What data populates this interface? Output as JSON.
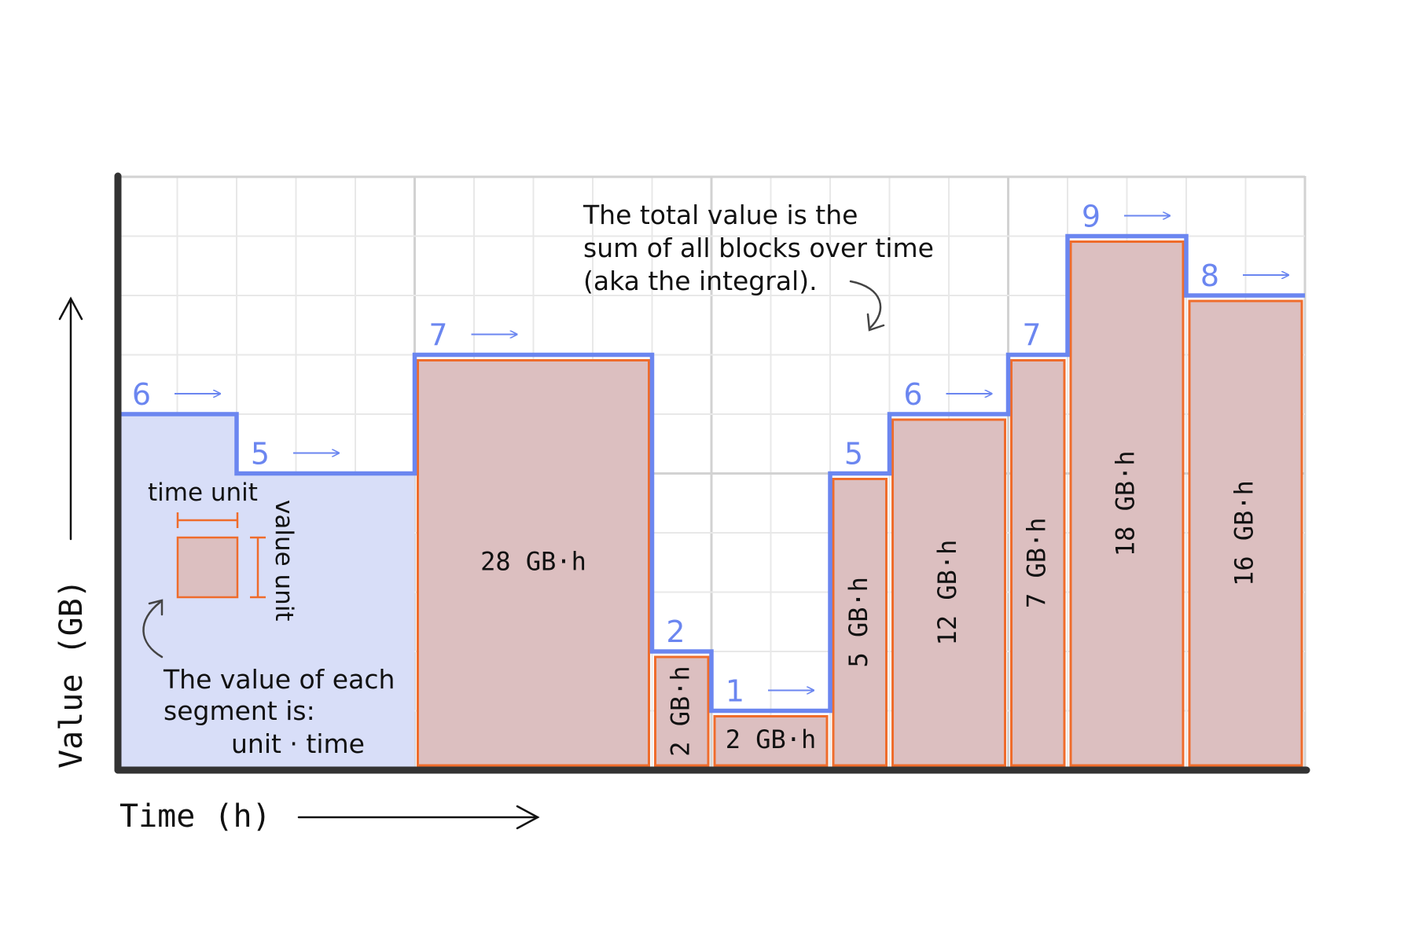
{
  "axes": {
    "y_label": "Value (GB)",
    "x_label": "Time (h)"
  },
  "chart_data": {
    "type": "step",
    "x_units_per_segment": 1,
    "segments": [
      {
        "duration": 2,
        "value": 6,
        "area_label": ""
      },
      {
        "duration": 3,
        "value": 5,
        "area_label": ""
      },
      {
        "duration": 4,
        "value": 7,
        "area_label": "28 GB·h"
      },
      {
        "duration": 1,
        "value": 2,
        "area_label": "2 GB·h"
      },
      {
        "duration": 2,
        "value": 1,
        "area_label": "2 GB·h"
      },
      {
        "duration": 1,
        "value": 5,
        "area_label": "5 GB·h"
      },
      {
        "duration": 2,
        "value": 6,
        "area_label": "12 GB·h"
      },
      {
        "duration": 1,
        "value": 7,
        "area_label": "7 GB·h"
      },
      {
        "duration": 2,
        "value": 9,
        "area_label": "18 GB·h"
      },
      {
        "duration": 2,
        "value": 8,
        "area_label": "16 GB·h"
      }
    ],
    "y_max": 10,
    "grid": true
  },
  "legend": {
    "time_unit": "time unit",
    "value_unit": "value unit",
    "note_line1": "The value of each",
    "note_line2": "segment is:",
    "note_line3": "unit · time"
  },
  "callout": {
    "line1": "The total value is the",
    "line2": "sum of all blocks over time",
    "line3": "(aka the integral)."
  },
  "colors": {
    "step_line": "#6b86f0",
    "fill_blue": "#d8def8",
    "block_fill": "#dcbfc0",
    "block_stroke": "#ef6c2c",
    "axis": "#333333",
    "grid_minor": "#e8e8e8",
    "grid_major": "#d2d2d2"
  }
}
